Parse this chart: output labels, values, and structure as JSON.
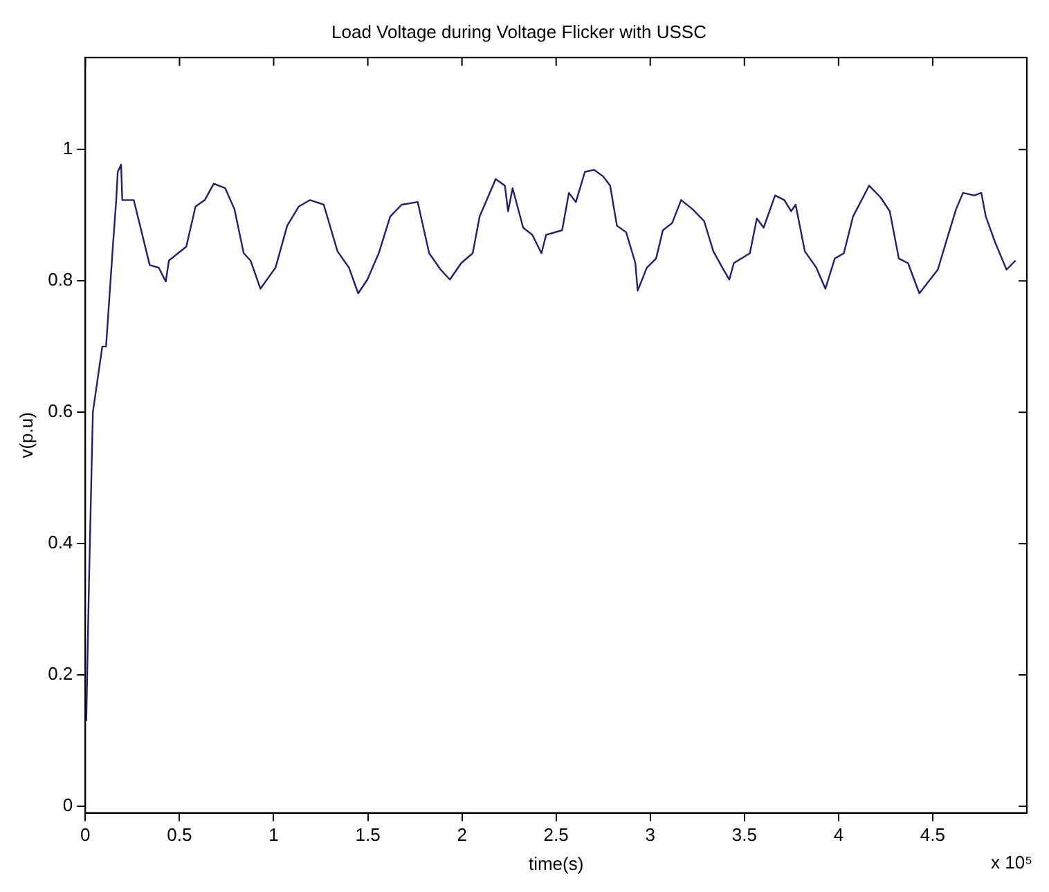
{
  "chart_data": {
    "type": "line",
    "title": "Load Voltage during Voltage Flicker with USSC",
    "xlabel": "time(s)",
    "ylabel": "v(p.u)",
    "annotations": [
      "x 10⁵"
    ],
    "xlim": [
      0,
      5
    ],
    "xticks": [
      0,
      0.5,
      1,
      1.5,
      2,
      2.5,
      3,
      3.5,
      4,
      4.5
    ],
    "ylim": [
      -0.01,
      1.14
    ],
    "yticks": [
      0,
      0.2,
      0.4,
      0.6,
      0.8,
      1
    ],
    "grid": false,
    "legend": false,
    "marker": "none",
    "line_style": "solid",
    "series": [
      {
        "color": "#1f1f7a",
        "x": [
          0.005,
          0.02,
          0.04,
          0.07,
          0.09,
          0.11,
          0.147,
          0.164,
          0.172,
          0.19,
          0.196,
          0.257,
          0.342,
          0.39,
          0.427,
          0.444,
          0.536,
          0.585,
          0.634,
          0.682,
          0.743,
          0.792,
          0.841,
          0.877,
          0.93,
          1.01,
          1.072,
          1.133,
          1.193,
          1.266,
          1.339,
          1.4,
          1.449,
          1.498,
          1.558,
          1.619,
          1.68,
          1.765,
          1.826,
          1.887,
          1.936,
          1.996,
          2.057,
          2.094,
          2.179,
          2.228,
          2.245,
          2.269,
          2.325,
          2.374,
          2.422,
          2.447,
          2.532,
          2.568,
          2.605,
          2.653,
          2.702,
          2.75,
          2.787,
          2.823,
          2.872,
          2.921,
          2.933,
          2.982,
          3.031,
          3.067,
          3.116,
          3.164,
          3.225,
          3.286,
          3.335,
          3.383,
          3.42,
          3.444,
          3.529,
          3.566,
          3.602,
          3.663,
          3.712,
          3.748,
          3.772,
          3.821,
          3.882,
          3.93,
          3.98,
          4.028,
          4.077,
          4.162,
          4.223,
          4.272,
          4.32,
          4.369,
          4.429,
          4.527,
          4.575,
          4.624,
          4.661,
          4.721,
          4.758,
          4.782,
          4.831,
          4.892,
          4.94
        ],
        "values": [
          0.13,
          0.35,
          0.6,
          0.66,
          0.7,
          0.7,
          0.856,
          0.923,
          0.966,
          0.977,
          0.923,
          0.923,
          0.824,
          0.82,
          0.799,
          0.831,
          0.852,
          0.913,
          0.923,
          0.948,
          0.941,
          0.909,
          0.842,
          0.831,
          0.788,
          0.82,
          0.884,
          0.913,
          0.923,
          0.916,
          0.845,
          0.82,
          0.781,
          0.802,
          0.842,
          0.898,
          0.916,
          0.92,
          0.842,
          0.817,
          0.802,
          0.827,
          0.842,
          0.898,
          0.955,
          0.945,
          0.906,
          0.941,
          0.881,
          0.87,
          0.842,
          0.87,
          0.877,
          0.934,
          0.92,
          0.966,
          0.969,
          0.959,
          0.945,
          0.884,
          0.874,
          0.827,
          0.785,
          0.82,
          0.834,
          0.877,
          0.888,
          0.923,
          0.909,
          0.891,
          0.845,
          0.82,
          0.802,
          0.827,
          0.842,
          0.895,
          0.881,
          0.93,
          0.923,
          0.906,
          0.916,
          0.845,
          0.82,
          0.788,
          0.834,
          0.842,
          0.898,
          0.945,
          0.927,
          0.906,
          0.834,
          0.827,
          0.781,
          0.817,
          0.863,
          0.909,
          0.934,
          0.93,
          0.934,
          0.898,
          0.859,
          0.817,
          0.831
        ]
      }
    ]
  }
}
